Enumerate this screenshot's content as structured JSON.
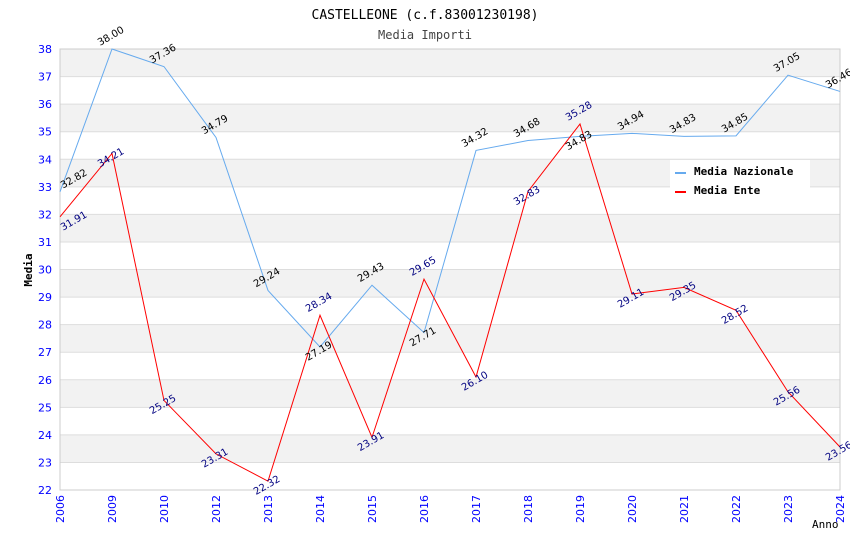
{
  "chart_data": {
    "type": "line",
    "title": "CASTELLEONE (c.f.83001230198)",
    "subtitle": "Media Importi",
    "xlabel": "Anno",
    "ylabel": "Media",
    "ylim": [
      22,
      38
    ],
    "yticks": [
      22,
      23,
      24,
      25,
      26,
      27,
      28,
      29,
      30,
      31,
      32,
      33,
      34,
      35,
      36,
      37,
      38
    ],
    "categories": [
      "2006",
      "2009",
      "2010",
      "2012",
      "2013",
      "2014",
      "2015",
      "2016",
      "2017",
      "2018",
      "2019",
      "2020",
      "2021",
      "2022",
      "2023",
      "2024"
    ],
    "legend_position": "top-right",
    "series": [
      {
        "name": "Media Nazionale",
        "color": "#66aaee",
        "label_color": "#000000",
        "values": [
          32.82,
          38.0,
          37.36,
          34.79,
          29.24,
          27.19,
          29.43,
          27.71,
          34.32,
          34.68,
          34.83,
          34.94,
          34.83,
          34.85,
          37.05,
          36.46
        ]
      },
      {
        "name": "Media Ente",
        "color": "#ff0000",
        "label_color": "#000080",
        "values": [
          31.91,
          34.21,
          25.25,
          23.31,
          22.32,
          28.34,
          23.91,
          29.65,
          26.1,
          32.83,
          35.28,
          29.11,
          29.35,
          28.52,
          25.56,
          23.56
        ]
      }
    ]
  }
}
